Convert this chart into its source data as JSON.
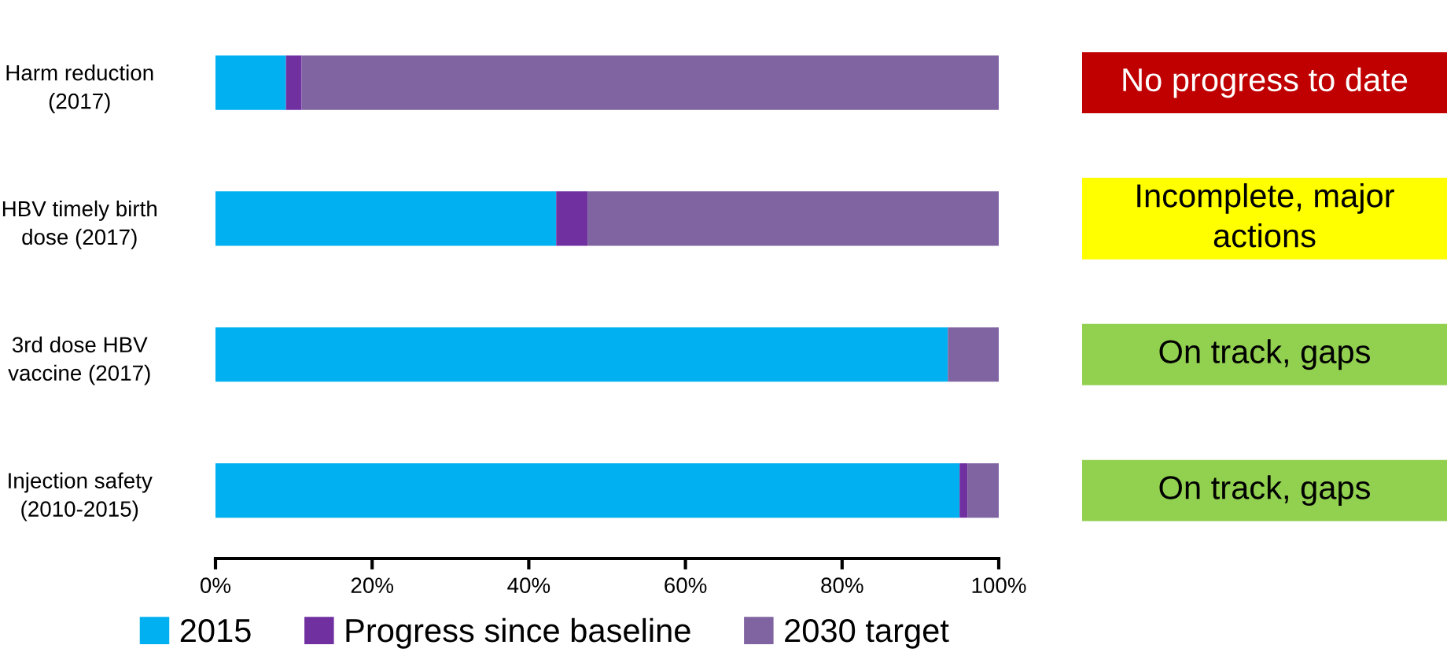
{
  "chart_data": [
    {
      "type": "bar",
      "orientation": "horizontal",
      "stacked": true,
      "categories": [
        "Harm reduction\n(2017)",
        "HBV timely birth\ndose (2017)",
        "3rd dose HBV\nvaccine (2017)",
        "Injection safety\n(2010-2015)"
      ],
      "series": [
        {
          "name": "2015",
          "color": "#00b0f0",
          "values": [
            9,
            43.5,
            93.5,
            95
          ]
        },
        {
          "name": "Progress since baseline",
          "color": "#7030a0",
          "values": [
            2,
            4,
            0,
            1
          ]
        },
        {
          "name": "2030 target",
          "color": "#8064a2",
          "values": [
            89,
            52.5,
            6.5,
            4
          ]
        }
      ],
      "xlim": [
        0,
        100
      ],
      "xticks": [
        {
          "value": 0,
          "label": "0%"
        },
        {
          "value": 20,
          "label": "20%"
        },
        {
          "value": 40,
          "label": "40%"
        },
        {
          "value": 60,
          "label": "60%"
        },
        {
          "value": 80,
          "label": "80%"
        },
        {
          "value": 100,
          "label": "100%"
        }
      ],
      "grid": false,
      "legend": "bottom"
    },
    {
      "type": "other",
      "annotations": [
        "No progress to date",
        "Incomplete, major\nactions",
        "On track, gaps",
        "On track, gaps"
      ],
      "colors": [
        "#c00000",
        "#ffff00",
        "#92d050",
        "#92d050"
      ]
    }
  ]
}
